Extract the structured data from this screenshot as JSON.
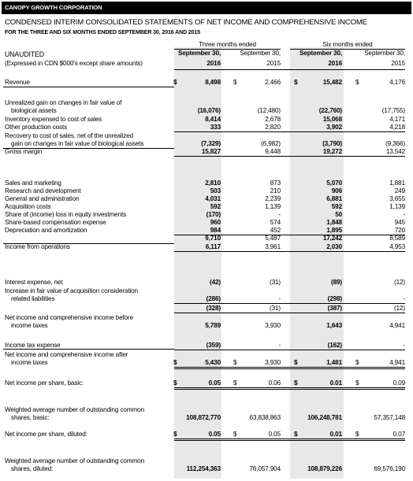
{
  "company": "CANOPY GROWTH CORPORATION",
  "title": "CONDENSED INTERIM CONSOLIDATED STATEMENTS OF NET INCOME AND COMPREHENSIVE INCOME",
  "subtitle": "FOR THE THREE AND SIX MONTHS ENDED SEPTEMBER 30, 2016 AND 2015",
  "header": {
    "unaudited": "UNAUDITED",
    "expressed": "(Expressed in CDN $000's except share amounts)",
    "three_months": "Three months ended",
    "six_months": "Six months ended",
    "sep30": "September 30,",
    "y2016": "2016",
    "y2015": "2015"
  },
  "rows": [
    {
      "label": "Revenue",
      "d1": "$",
      "v1": "8,498",
      "d2": "$",
      "v2": "2,466",
      "d3": "$",
      "v3": "15,482",
      "d4": "$",
      "v4": "4,176"
    },
    {
      "label": "Unrealized gain on changes in fair value of",
      "label2": "biological assets",
      "v1": "(16,076)",
      "v2": "(12,480)",
      "v3": "(22,760)",
      "v4": "(17,755)"
    },
    {
      "label": "Inventory expensed to cost of sales",
      "v1": "8,414",
      "v2": "2,678",
      "v3": "15,068",
      "v4": "4,171"
    },
    {
      "label": "Other production costs",
      "v1": "333",
      "v2": "2,820",
      "v3": "3,902",
      "v4": "4,218"
    },
    {
      "label": "Recovery to cost of sales, net of the unrealized",
      "label2": "gain on changes in fair value of biological assets",
      "v1": "(7,329)",
      "v2": "(6,982)",
      "v3": "(3,790)",
      "v4": "(9,366)"
    },
    {
      "label": "Gross margin",
      "v1": "15,827",
      "v2": "9,448",
      "v3": "19,272",
      "v4": "13,542"
    },
    {
      "label": "Sales and marketing",
      "v1": "2,810",
      "v2": "873",
      "v3": "5,070",
      "v4": "1,881"
    },
    {
      "label": "Research and development",
      "v1": "503",
      "v2": "210",
      "v3": "906",
      "v4": "249"
    },
    {
      "label": "General and administration",
      "v1": "4,031",
      "v2": "2,239",
      "v3": "6,881",
      "v4": "3,655"
    },
    {
      "label": "Acquisition costs",
      "v1": "592",
      "v2": "1,139",
      "v3": "592",
      "v4": "1,139"
    },
    {
      "label": "Share of (income) loss in equity investments",
      "v1": "(170)",
      "v2": "-",
      "v3": "50",
      "v4": "-"
    },
    {
      "label": "Share-based compensation expense",
      "v1": "960",
      "v2": "574",
      "v3": "1,848",
      "v4": "945"
    },
    {
      "label": "Depreciation and amortization",
      "v1": "984",
      "v2": "452",
      "v3": "1,895",
      "v4": "720"
    },
    {
      "label": "",
      "v1": "9,710",
      "v2": "5,487",
      "v3": "17,242",
      "v4": "8,589"
    },
    {
      "label": "Income from operations",
      "v1": "6,117",
      "v2": "3,961",
      "v3": "2,030",
      "v4": "4,953"
    },
    {
      "label": "Interest expense, net",
      "v1": "(42)",
      "v2": "(31)",
      "v3": "(89)",
      "v4": "(12)"
    },
    {
      "label": "Increase in fair value of acquisition consideration",
      "label2": "related liabilities",
      "v1": "(286)",
      "v2": "-",
      "v3": "(298)",
      "v4": "-"
    },
    {
      "label": "",
      "v1": "(328)",
      "v2": "(31)",
      "v3": "(387)",
      "v4": "(12)"
    },
    {
      "label": "Net income and comprehensive income before",
      "label2": "income taxes",
      "v1": "5,789",
      "v2": "3,930",
      "v3": "1,643",
      "v4": "4,941"
    },
    {
      "label": "Income tax expense",
      "v1": "(359)",
      "v2": "-",
      "v3": "(162)",
      "v4": "-"
    },
    {
      "label": "Net income and comprehensive income after",
      "label2": "income taxes",
      "d1": "$",
      "v1": "5,430",
      "d2": "$",
      "v2": "3,930",
      "d3": "$",
      "v3": "1,481",
      "d4": "$",
      "v4": "4,941"
    },
    {
      "label": "Net income per share, basic:",
      "d1": "$",
      "v1": "0.05",
      "d2": "$",
      "v2": "0.06",
      "d3": "$",
      "v3": "0.01",
      "d4": "$",
      "v4": "0.09"
    },
    {
      "label": "Weighted average number of outstanding common",
      "label2": "shares, basic:",
      "v1": "108,872,770",
      "v2": "63,838,863",
      "v3": "106,248,781",
      "v4": "57,357,148"
    },
    {
      "label": "Net income per share, diluted:",
      "d1": "$",
      "v1": "0.05",
      "d2": "$",
      "v2": "0.05",
      "d3": "$",
      "v3": "0.01",
      "d4": "$",
      "v4": "0.07"
    },
    {
      "label": "Weighted average number of outstanding common",
      "label2": "shares, diluted:",
      "v1": "112,254,363",
      "v2": "76,057,904",
      "v3": "108,879,226",
      "v4": "69,576,190"
    }
  ]
}
